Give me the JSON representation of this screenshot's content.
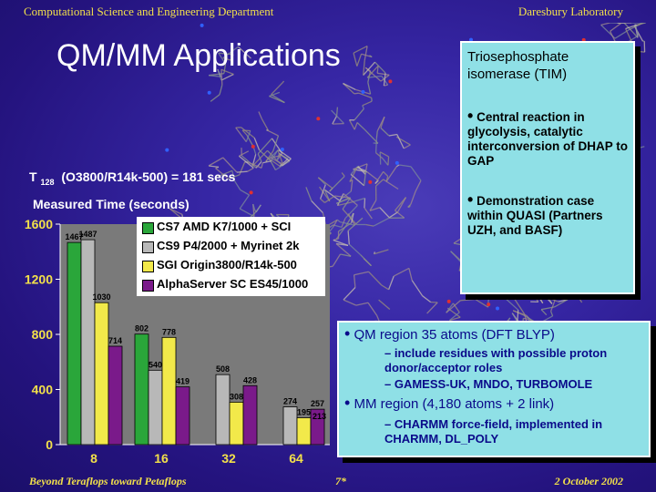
{
  "header": {
    "left": "Computational Science and Engineering Department",
    "right": "Daresbury Laboratory"
  },
  "title": "QM/MM Applications",
  "timing_line": {
    "prefix": "T",
    "subscript": "128",
    "rest": "(O3800/R14k-500) = 181 secs"
  },
  "tim_box": {
    "heading": "Triosephosphate isomerase  (TIM)",
    "bullet1": "Central reaction in glycolysis, catalytic interconversion of DHAP to GAP",
    "bullet2": "Demonstration case within QUASI (Partners UZH, and BASF)"
  },
  "qm_box": {
    "item1": "QM region 35 atoms (DFT BLYP)",
    "sub1a": "– include residues with possible proton donor/acceptor roles",
    "sub1b": "– GAMESS-UK, MNDO, TURBOMOLE",
    "item2": "MM region (4,180 atoms + 2 link)",
    "sub2a": "– CHARMM force-field, implemented in CHARMM, DL_POLY"
  },
  "footer": {
    "left": "Beyond Teraflops toward Petaflops",
    "center": "7*",
    "right": "2 October 2002"
  },
  "colors": {
    "background": "#2a1a8e",
    "header_text": "#f2e04a",
    "box_fill": "#8fe0e6",
    "chart_panel": "#7a7a7a",
    "bar_amd": "#2aa63a",
    "bar_p4": "#b8b8b8",
    "bar_origin": "#f2e94a",
    "bar_alpha": "#7a1a8a"
  },
  "chart_data": {
    "type": "bar",
    "ylabel": "Measured Time (seconds)",
    "xlabel": "",
    "categories": [
      "8",
      "16",
      "32",
      "64"
    ],
    "y_ticks": [
      "0",
      "400",
      "800",
      "1200",
      "1600"
    ],
    "ylim": [
      0,
      1600
    ],
    "legend_position": "top",
    "series": [
      {
        "name": "CS7 AMD K7/1000 + SCI",
        "color": "#2aa63a",
        "values": [
          1467,
          802,
          null,
          null
        ],
        "labels": [
          "1467",
          "802",
          "",
          ""
        ]
      },
      {
        "name": "CS9 P4/2000 + Myrinet 2k",
        "color": "#b8b8b8",
        "values": [
          1487,
          540,
          508,
          274
        ],
        "labels": [
          "1487",
          "540",
          "508",
          "274"
        ]
      },
      {
        "name": "SGI Origin3800/R14k-500",
        "color": "#f2e94a",
        "values": [
          1030,
          778,
          308,
          195
        ],
        "labels": [
          "1030",
          "778",
          "308",
          "195"
        ]
      },
      {
        "name": "AlphaServer SC ES45/1000",
        "color": "#7a1a8a",
        "values": [
          714,
          419,
          428,
          257
        ],
        "labels": [
          "714",
          "419",
          "428",
          "257"
        ]
      }
    ],
    "extra_annotation": "213"
  }
}
